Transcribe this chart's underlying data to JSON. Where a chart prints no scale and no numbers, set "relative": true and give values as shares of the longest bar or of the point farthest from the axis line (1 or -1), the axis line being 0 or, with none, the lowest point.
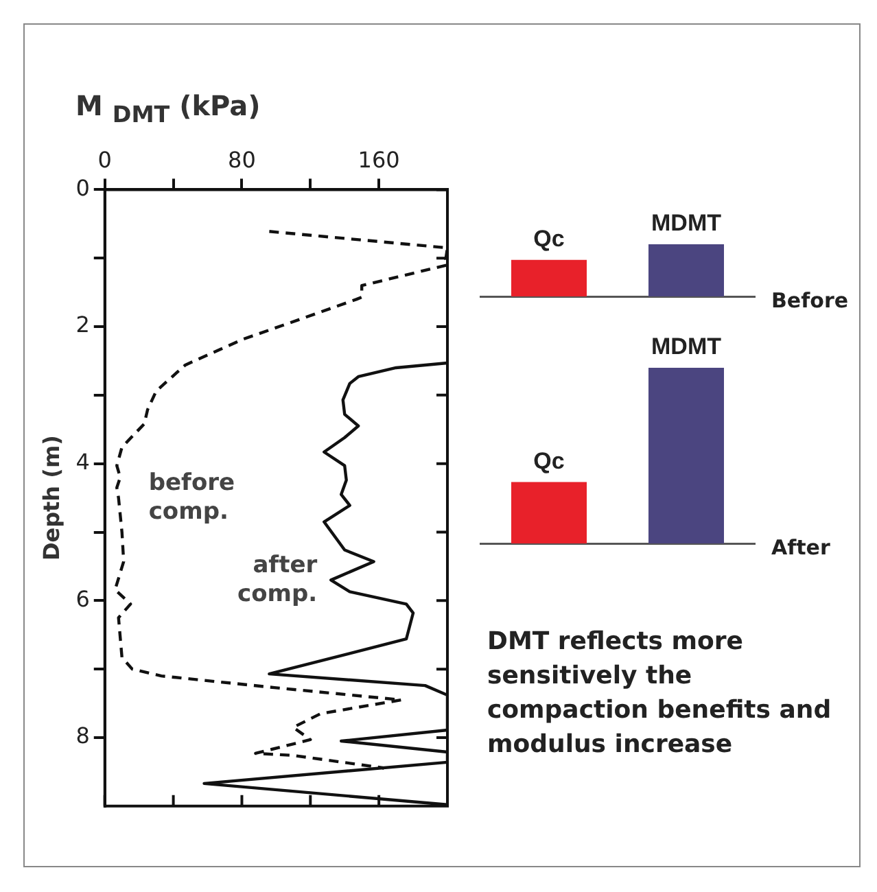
{
  "chart_data": [
    {
      "type": "line",
      "xlabel": "M $_{DMT}$ (kPa)",
      "ylabel": "Depth (m)",
      "xlim": [
        0,
        200
      ],
      "xticks": [
        0,
        {
          "value": 40,
          "label": null
        },
        80,
        {
          "value": 120,
          "label": null
        },
        160
      ],
      "ylim": [
        9,
        0
      ],
      "yticks": [
        0,
        {
          "value": 1,
          "label": null
        },
        2,
        {
          "value": 3,
          "label": null
        },
        4,
        {
          "value": 5,
          "label": null
        },
        6,
        {
          "value": 7,
          "label": null
        },
        8
      ],
      "grid": false,
      "legend": false,
      "series": [
        {
          "name": "before comp.",
          "color": "#111111",
          "line_style": "dashed",
          "x": [
            96,
            200,
            199,
            200,
            150,
            150,
            147,
            104,
            80,
            47,
            30,
            25,
            23,
            10,
            7,
            9,
            7,
            8,
            10,
            11,
            6,
            15,
            8,
            10,
            16,
            33,
            99,
            173,
            126,
            110,
            120,
            88,
            110,
            162,
            163
          ],
          "values": [
            0.61,
            0.85,
            1.02,
            1.1,
            1.4,
            1.57,
            1.6,
            1.98,
            2.19,
            2.56,
            2.94,
            3.21,
            3.42,
            3.76,
            4.03,
            4.2,
            4.35,
            4.5,
            5.0,
            5.43,
            5.84,
            6.05,
            6.25,
            6.83,
            7.0,
            7.1,
            7.27,
            7.45,
            7.65,
            7.85,
            8.03,
            8.23,
            8.26,
            8.44,
            8.45
          ]
        },
        {
          "name": "after comp.",
          "color": "#111111",
          "line_style": "solid",
          "x": [
            200,
            170,
            148,
            143,
            139,
            140,
            148,
            140,
            128,
            140,
            141,
            138,
            143,
            128,
            140,
            157,
            132,
            143,
            176,
            180,
            176,
            96,
            187,
            200,
            200,
            138,
            200,
            200,
            58,
            200
          ],
          "values": [
            2.53,
            2.6,
            2.73,
            2.83,
            3.07,
            3.28,
            3.45,
            3.62,
            3.83,
            4.03,
            4.24,
            4.45,
            4.61,
            4.85,
            5.26,
            5.43,
            5.7,
            5.87,
            6.05,
            6.18,
            6.56,
            7.07,
            7.24,
            7.38,
            7.89,
            8.05,
            8.21,
            8.36,
            8.67,
            8.98
          ]
        }
      ]
    },
    {
      "type": "bar",
      "xlabel": "Before",
      "relative": true,
      "categories": [
        "Qc",
        "MDMT"
      ],
      "colors": [
        "#e8212a",
        "#4b4580"
      ],
      "values": [
        0.7,
        1
      ]
    },
    {
      "type": "bar",
      "xlabel": "After",
      "relative": true,
      "categories": [
        "Qc",
        "MDMT"
      ],
      "colors": [
        "#e8212a",
        "#4b4580"
      ],
      "values": [
        0.35,
        1
      ],
      "annotations": [
        "DMT reflects more sensitively the compaction benefits and modulus increase"
      ]
    }
  ]
}
